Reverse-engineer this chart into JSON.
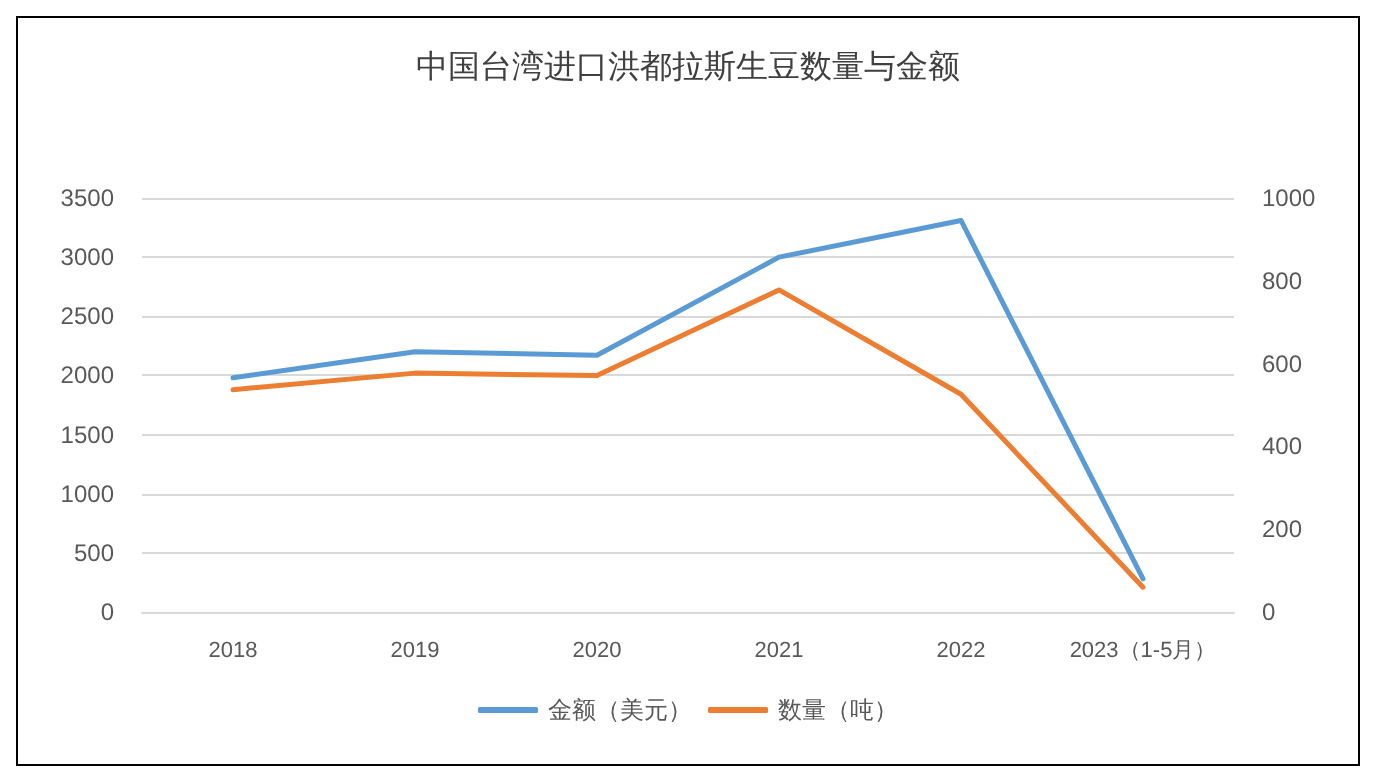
{
  "chart_data": {
    "type": "line",
    "title": "中国台湾进口洪都拉斯生豆数量与金额",
    "categories": [
      "2018",
      "2019",
      "2020",
      "2021",
      "2022",
      "2023（1-5月）"
    ],
    "series": [
      {
        "name": "金额（美元）",
        "color": "#5b9bd5",
        "values": [
          1980,
          2200,
          2170,
          3000,
          3310,
          280
        ]
      },
      {
        "name": "数量（吨）",
        "color": "#ed7d31",
        "axis": "y2",
        "values": [
          537,
          577,
          571,
          778,
          526,
          60
        ]
      }
    ],
    "ylim": [
      0,
      3500
    ],
    "yticks": [
      0,
      500,
      1000,
      1500,
      2000,
      2500,
      3000,
      3500
    ],
    "y2lim": [
      0,
      1000
    ],
    "y2ticks": [
      0,
      200,
      400,
      600,
      800,
      1000
    ],
    "grid": "y",
    "legend": "bottom",
    "marker": "none",
    "line_style": "solid"
  }
}
